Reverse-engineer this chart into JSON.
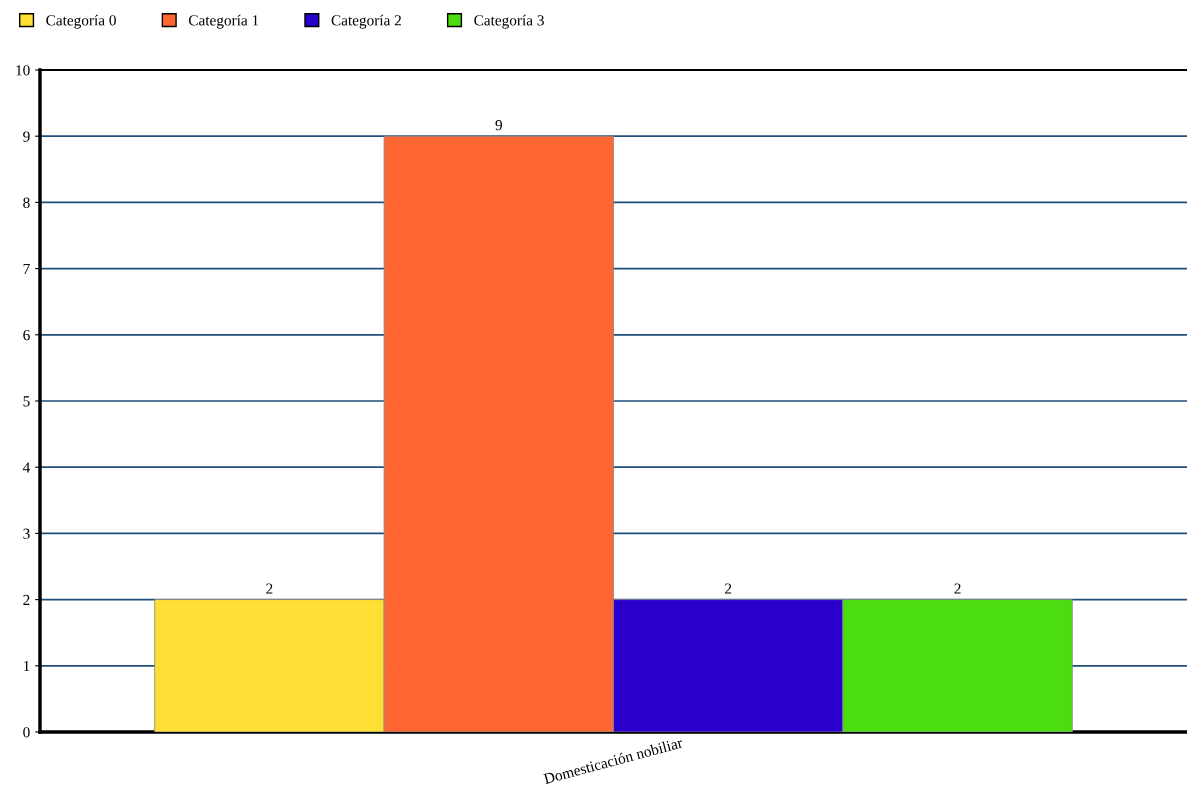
{
  "chart_data": {
    "type": "bar",
    "categories": [
      "Domesticación nobiliar"
    ],
    "series": [
      {
        "name": "Categoría 0",
        "color": "#ffdf33",
        "values": [
          2
        ]
      },
      {
        "name": "Categoría 1",
        "color": "#ff6633",
        "values": [
          9
        ]
      },
      {
        "name": "Categoría 2",
        "color": "#2a00cc",
        "values": [
          2
        ]
      },
      {
        "name": "Categoría 3",
        "color": "#4cdd10",
        "values": [
          2
        ]
      }
    ],
    "ylim": [
      0,
      10
    ],
    "yticks": [
      0,
      1,
      2,
      3,
      4,
      5,
      6,
      7,
      8,
      9,
      10
    ],
    "grid": "y",
    "legend": "top left",
    "data_labels": true
  }
}
